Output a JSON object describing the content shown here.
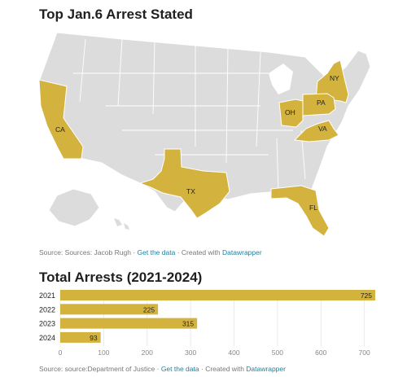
{
  "map": {
    "title": "Top Jan.6 Arrest Stated",
    "highlight_color": "#d3b33d",
    "base_color": "#dcdcdc",
    "states": [
      "CA",
      "TX",
      "FL",
      "NY",
      "PA",
      "OH",
      "VA"
    ],
    "source": {
      "prefix": "Source: Sources: Jacob Rugh",
      "link1": "Get the data",
      "middle": "Created with",
      "link2": "Datawrapper"
    }
  },
  "chart_data": {
    "type": "bar",
    "title": "Total Arrests (2021-2024)",
    "categories": [
      "2021",
      "2022",
      "2023",
      "2024"
    ],
    "values": [
      725,
      225,
      315,
      93
    ],
    "xlim": [
      0,
      725
    ],
    "ticks": [
      0,
      100,
      200,
      300,
      400,
      500,
      600,
      700
    ],
    "color": "#d3b33d",
    "grid": true
  },
  "bar_source": {
    "prefix": "Source: source:Department of Justice",
    "link1": "Get the data",
    "middle": "Created with",
    "link2": "Datawrapper"
  }
}
